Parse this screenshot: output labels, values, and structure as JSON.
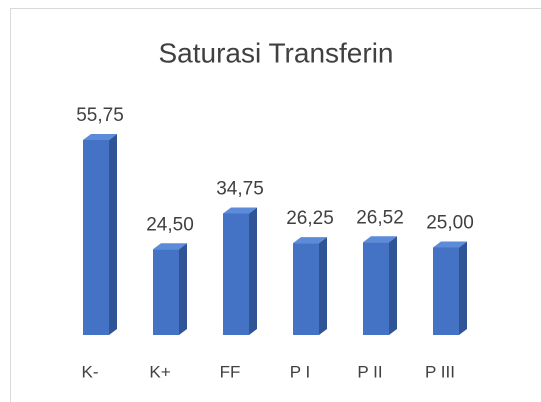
{
  "chart_data": {
    "type": "bar3d",
    "title": "Saturasi Transferin",
    "categories": [
      "K-",
      "K+",
      "FF",
      "P I",
      "P II",
      "P III"
    ],
    "values": [
      55.75,
      24.5,
      34.75,
      26.25,
      26.52,
      25.0
    ],
    "value_labels": [
      "55,75",
      "24,50",
      "34,75",
      "26,25",
      "26,52",
      "25,00"
    ],
    "color": "#4472c4"
  }
}
